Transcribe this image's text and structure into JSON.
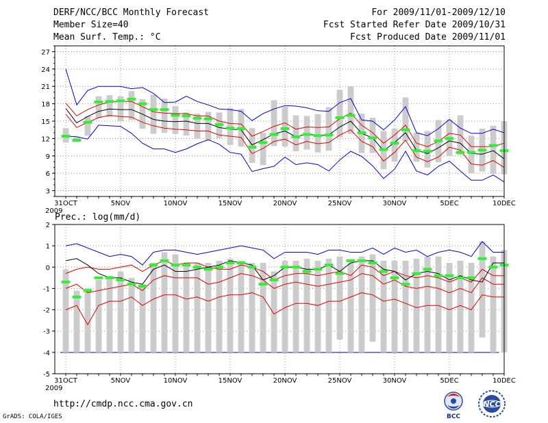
{
  "header": {
    "title": "DERF/NCC/BCC Monthly Forecast",
    "member_size": "Member Size=40",
    "variable1": "Mean Surf. Temp.: °C",
    "forecast_period": "For 2009/11/01-2009/12/10",
    "start_date": "Fcst Started Refer Date 2009/10/31",
    "produced_date": "Fcst Produced Date 2009/11/01"
  },
  "footer": {
    "url": "http://cmdp.ncc.cma.gov.cn",
    "grads": "GrADS: COLA/IGES",
    "logo1_text": "BCC",
    "logo2_text": "NCC"
  },
  "colors": {
    "envelope": "#0000dd",
    "std_band": "#dd0000",
    "mean": "#000000",
    "marker": "#33ee33",
    "box": "#cccccc",
    "grid": "#888888",
    "floor": "#3333aa"
  },
  "chart_data": [
    {
      "type": "line",
      "title": "Mean Surf. Temp.: °C",
      "x": [
        "31OCT",
        "1NOV",
        "2NOV",
        "3NOV",
        "4NOV",
        "5NOV",
        "6NOV",
        "7NOV",
        "8NOV",
        "9NOV",
        "10NOV",
        "11NOV",
        "12NOV",
        "13NOV",
        "14NOV",
        "15NOV",
        "16NOV",
        "17NOV",
        "18NOV",
        "19NOV",
        "20NOV",
        "21NOV",
        "22NOV",
        "23NOV",
        "24NOV",
        "25NOV",
        "26NOV",
        "27NOV",
        "28NOV",
        "29NOV",
        "30NOV",
        "1DEC",
        "2DEC",
        "3DEC",
        "4DEC",
        "5DEC",
        "6DEC",
        "7DEC",
        "8DEC",
        "9DEC",
        "10DEC"
      ],
      "x_ticks": [
        "31OCT",
        "5NOV",
        "10NOV",
        "15NOV",
        "20NOV",
        "25NOV",
        "30NOV",
        "5DEC",
        "10DEC"
      ],
      "x_sub": "2009",
      "ylim": [
        2,
        28
      ],
      "y_ticks": [
        3,
        6,
        9,
        12,
        15,
        18,
        21,
        24,
        27
      ],
      "grid": true,
      "series": [
        {
          "name": "ensemble max",
          "color": "#0000dd",
          "values": [
            24.0,
            17.8,
            20.3,
            21.0,
            21.0,
            21.0,
            20.6,
            20.8,
            19.8,
            18.2,
            18.3,
            19.3,
            18.4,
            17.8,
            17.1,
            17.0,
            16.7,
            15.1,
            16.3,
            17.1,
            17.7,
            17.6,
            17.3,
            16.8,
            16.7,
            18.2,
            18.9,
            15.2,
            15.0,
            13.5,
            15.2,
            17.5,
            13.0,
            12.5,
            13.7,
            15.3,
            13.8,
            12.9,
            12.9,
            13.6,
            13.0
          ]
        },
        {
          "name": "mean + 1 std",
          "color": "#dd0000",
          "values": [
            18.1,
            15.9,
            17.0,
            17.8,
            18.3,
            18.4,
            18.4,
            17.5,
            16.6,
            16.4,
            16.3,
            16.3,
            15.9,
            15.9,
            15.0,
            14.6,
            14.5,
            12.4,
            13.2,
            14.1,
            14.7,
            13.6,
            14.0,
            13.9,
            14.0,
            15.4,
            16.4,
            14.3,
            13.0,
            11.2,
            12.6,
            14.3,
            11.2,
            10.6,
            11.5,
            12.9,
            12.6,
            10.6,
            10.6,
            10.6,
            11.2
          ]
        },
        {
          "name": "ensemble mean",
          "color": "#000000",
          "values": [
            17.2,
            14.7,
            15.8,
            16.7,
            17.1,
            17.0,
            17.0,
            16.2,
            15.3,
            15.0,
            14.9,
            15.0,
            14.6,
            14.6,
            13.9,
            13.6,
            13.5,
            10.9,
            11.8,
            12.8,
            13.3,
            12.3,
            12.8,
            12.5,
            12.6,
            14.0,
            15.0,
            12.9,
            12.1,
            9.9,
            11.3,
            13.0,
            10.0,
            9.4,
            10.4,
            11.6,
            11.2,
            9.4,
            9.3,
            9.9,
            8.5
          ]
        },
        {
          "name": "mean - 1 std",
          "color": "#dd0000",
          "values": [
            16.2,
            13.9,
            14.8,
            15.6,
            16.0,
            15.8,
            15.7,
            14.8,
            14.2,
            13.8,
            13.6,
            13.5,
            13.3,
            13.3,
            12.6,
            12.4,
            12.2,
            9.4,
            10.3,
            11.5,
            11.9,
            10.9,
            11.5,
            11.1,
            11.3,
            12.6,
            13.5,
            11.5,
            10.6,
            8.1,
            9.6,
            11.7,
            8.8,
            8.0,
            8.8,
            10.5,
            10.0,
            7.6,
            7.4,
            8.2,
            7.0
          ]
        },
        {
          "name": "ensemble min",
          "color": "#0000dd",
          "values": [
            12.4,
            12.3,
            11.9,
            14.3,
            14.2,
            14.1,
            12.9,
            11.2,
            10.2,
            10.2,
            9.6,
            10.2,
            11.1,
            11.8,
            11.0,
            9.6,
            9.3,
            6.3,
            6.8,
            7.2,
            8.8,
            7.5,
            7.8,
            7.5,
            6.4,
            8.3,
            9.8,
            8.9,
            7.3,
            5.1,
            6.7,
            9.8,
            6.4,
            5.7,
            7.2,
            8.1,
            6.4,
            4.8,
            4.8,
            5.7,
            4.5
          ]
        }
      ],
      "boxes": {
        "lower": [
          11.3,
          11.5,
          12.5,
          15.5,
          15.7,
          15.0,
          15.2,
          13.7,
          12.8,
          13.0,
          12.8,
          12.5,
          12.0,
          11.6,
          12.1,
          10.9,
          10.6,
          7.8,
          7.4,
          10.7,
          10.6,
          9.8,
          10.1,
          9.6,
          9.9,
          12.2,
          12.8,
          9.5,
          9.5,
          6.7,
          8.0,
          11.5,
          8.0,
          7.0,
          7.9,
          9.0,
          9.2,
          6.0,
          6.3,
          5.9,
          5.8
        ],
        "upper": [
          13.8,
          12.2,
          15.9,
          19.3,
          19.5,
          19.3,
          20.2,
          18.8,
          19.6,
          18.9,
          17.6,
          16.5,
          16.3,
          16.6,
          16.5,
          17.3,
          17.1,
          13.8,
          13.0,
          18.6,
          17.5,
          16.0,
          15.9,
          16.2,
          17.4,
          20.4,
          21.0,
          16.3,
          15.6,
          13.3,
          13.7,
          19.1,
          13.0,
          13.3,
          15.2,
          15.3,
          16.0,
          12.5,
          13.7,
          14.2,
          15.0
        ]
      },
      "markers": [
        12.4,
        11.7,
        14.8,
        18.3,
        18.4,
        18.5,
        18.8,
        18.0,
        17.0,
        17.0,
        16.0,
        15.9,
        15.5,
        15.4,
        14.4,
        13.8,
        13.7,
        10.5,
        11.3,
        12.7,
        13.7,
        12.3,
        12.7,
        12.5,
        12.6,
        15.6,
        16.0,
        13.0,
        12.1,
        10.1,
        11.2,
        13.5,
        9.9,
        9.8,
        11.6,
        12.0,
        9.6,
        9.6,
        10.0,
        10.8,
        9.9
      ]
    },
    {
      "type": "line",
      "title": "Prec.: log(mm/d)",
      "x": [
        "31OCT",
        "1NOV",
        "2NOV",
        "3NOV",
        "4NOV",
        "5NOV",
        "6NOV",
        "7NOV",
        "8NOV",
        "9NOV",
        "10NOV",
        "11NOV",
        "12NOV",
        "13NOV",
        "14NOV",
        "15NOV",
        "16NOV",
        "17NOV",
        "18NOV",
        "19NOV",
        "20NOV",
        "21NOV",
        "22NOV",
        "23NOV",
        "24NOV",
        "25NOV",
        "26NOV",
        "27NOV",
        "28NOV",
        "29NOV",
        "30NOV",
        "1DEC",
        "2DEC",
        "3DEC",
        "4DEC",
        "5DEC",
        "6DEC",
        "7DEC",
        "8DEC",
        "9DEC",
        "10DEC"
      ],
      "x_ticks": [
        "31OCT",
        "5NOV",
        "10NOV",
        "15NOV",
        "20NOV",
        "25NOV",
        "30NOV",
        "5DEC",
        "10DEC"
      ],
      "x_sub": "2009",
      "ylim": [
        -5,
        2
      ],
      "y_ticks": [
        -5,
        -4,
        -3,
        -2,
        -1,
        0,
        1,
        2
      ],
      "grid": true,
      "floor": -4,
      "series": [
        {
          "name": "ensemble max",
          "color": "#0000dd",
          "values": [
            1.0,
            1.1,
            0.9,
            0.7,
            0.5,
            0.6,
            0.5,
            0.1,
            0.7,
            0.8,
            0.8,
            0.7,
            0.6,
            0.7,
            0.8,
            0.9,
            1.0,
            0.9,
            0.8,
            0.4,
            0.7,
            0.7,
            0.7,
            0.6,
            0.8,
            0.8,
            0.7,
            0.7,
            0.9,
            0.6,
            0.9,
            0.7,
            0.8,
            0.5,
            0.7,
            0.8,
            0.7,
            0.5,
            1.2,
            0.7,
            0.7
          ]
        },
        {
          "name": "mean + 1 std",
          "color": "#dd0000",
          "values": [
            -0.3,
            -0.1,
            0.0,
            -0.1,
            -0.1,
            0.0,
            0.1,
            -0.2,
            0.1,
            0.3,
            0.1,
            0.2,
            0.2,
            0.0,
            -0.1,
            -0.1,
            0.1,
            0.0,
            -0.2,
            -0.6,
            -0.4,
            -0.3,
            -0.3,
            -0.4,
            -0.3,
            -0.2,
            -0.4,
            0.1,
            0.0,
            -0.4,
            -0.2,
            -0.4,
            -0.5,
            -0.4,
            -0.5,
            -0.7,
            -0.5,
            -0.7,
            -0.1,
            -0.4,
            -0.4
          ]
        },
        {
          "name": "ensemble mean",
          "color": "#000000",
          "values": [
            0.3,
            0.4,
            0.1,
            -0.3,
            -0.5,
            -0.5,
            -0.7,
            -0.8,
            -0.1,
            0.1,
            -0.2,
            -0.2,
            -0.1,
            0.0,
            0.1,
            0.3,
            0.2,
            0.1,
            -0.6,
            -0.4,
            0.0,
            0.0,
            -0.1,
            -0.1,
            0.1,
            -0.2,
            0.2,
            0.3,
            0.3,
            -0.1,
            -0.2,
            -0.6,
            -0.3,
            -0.2,
            -0.3,
            -0.6,
            -0.4,
            -0.6,
            -0.7,
            0.2,
            0.2
          ]
        },
        {
          "name": "mean - 1 std",
          "color": "#dd0000",
          "values": [
            -1.0,
            -0.8,
            -1.2,
            -1.1,
            -1.0,
            -0.9,
            -0.8,
            -1.1,
            -0.6,
            -0.4,
            -0.5,
            -0.5,
            -0.5,
            -0.8,
            -0.7,
            -0.5,
            -0.3,
            -0.4,
            -0.6,
            -1.0,
            -0.8,
            -0.7,
            -0.8,
            -0.9,
            -0.8,
            -0.7,
            -0.6,
            -0.3,
            -0.4,
            -0.8,
            -0.6,
            -0.9,
            -1.0,
            -0.9,
            -1.0,
            -1.2,
            -1.0,
            -1.2,
            -0.5,
            -0.8,
            -0.8
          ]
        },
        {
          "name": "ensemble min",
          "color": "#dd0000",
          "values": [
            -2.0,
            -1.8,
            -2.7,
            -1.8,
            -1.6,
            -1.6,
            -1.4,
            -1.8,
            -1.5,
            -1.3,
            -1.3,
            -1.5,
            -1.4,
            -1.6,
            -1.4,
            -1.3,
            -1.3,
            -1.2,
            -1.4,
            -2.2,
            -1.9,
            -1.7,
            -1.7,
            -1.8,
            -1.6,
            -1.6,
            -1.4,
            -1.2,
            -1.3,
            -1.6,
            -1.5,
            -1.7,
            -1.9,
            -1.8,
            -1.8,
            -2.0,
            -1.8,
            -2.0,
            -1.3,
            -1.4,
            -1.4
          ]
        }
      ],
      "boxes": {
        "lower": [
          -4.0,
          -4.0,
          -4.0,
          -4.0,
          -4.0,
          -4.0,
          -4.0,
          -4.0,
          -4.0,
          -4.0,
          -4.0,
          -4.0,
          -4.0,
          -4.0,
          -4.0,
          -4.0,
          -4.0,
          -4.0,
          -4.0,
          -4.0,
          -4.0,
          -4.0,
          -4.0,
          -4.0,
          -4.0,
          -3.4,
          -4.0,
          -4.0,
          -3.5,
          -4.0,
          -4.0,
          -4.0,
          -4.0,
          -4.0,
          -4.0,
          -4.0,
          -4.0,
          -4.0,
          -3.3,
          -4.0,
          -4.0
        ],
        "upper": [
          -0.1,
          -1.1,
          -1.0,
          -0.6,
          -0.4,
          -0.2,
          -0.5,
          -0.8,
          0.2,
          0.7,
          0.6,
          0.2,
          0.2,
          0.2,
          0.3,
          0.4,
          0.3,
          0.2,
          0.2,
          -0.2,
          0.3,
          0.3,
          0.4,
          0.3,
          0.4,
          0.5,
          0.2,
          0.5,
          0.6,
          0.3,
          0.3,
          0.3,
          0.4,
          0.5,
          0.5,
          0.2,
          0.3,
          0.2,
          1.2,
          0.5,
          0.8
        ]
      },
      "markers": [
        -0.7,
        -1.4,
        -1.1,
        -0.5,
        -0.5,
        -0.6,
        -0.8,
        -0.9,
        0.1,
        0.3,
        0.1,
        0.1,
        0.0,
        -0.1,
        0.0,
        0.2,
        0.2,
        0.0,
        -0.8,
        -0.6,
        0.0,
        0.0,
        -0.2,
        -0.1,
        0.1,
        -0.3,
        0.3,
        0.3,
        0.2,
        -0.2,
        -0.5,
        -0.8,
        -0.3,
        -0.1,
        -0.4,
        -0.4,
        -0.5,
        -0.5,
        0.4,
        0.0,
        0.1
      ]
    }
  ]
}
